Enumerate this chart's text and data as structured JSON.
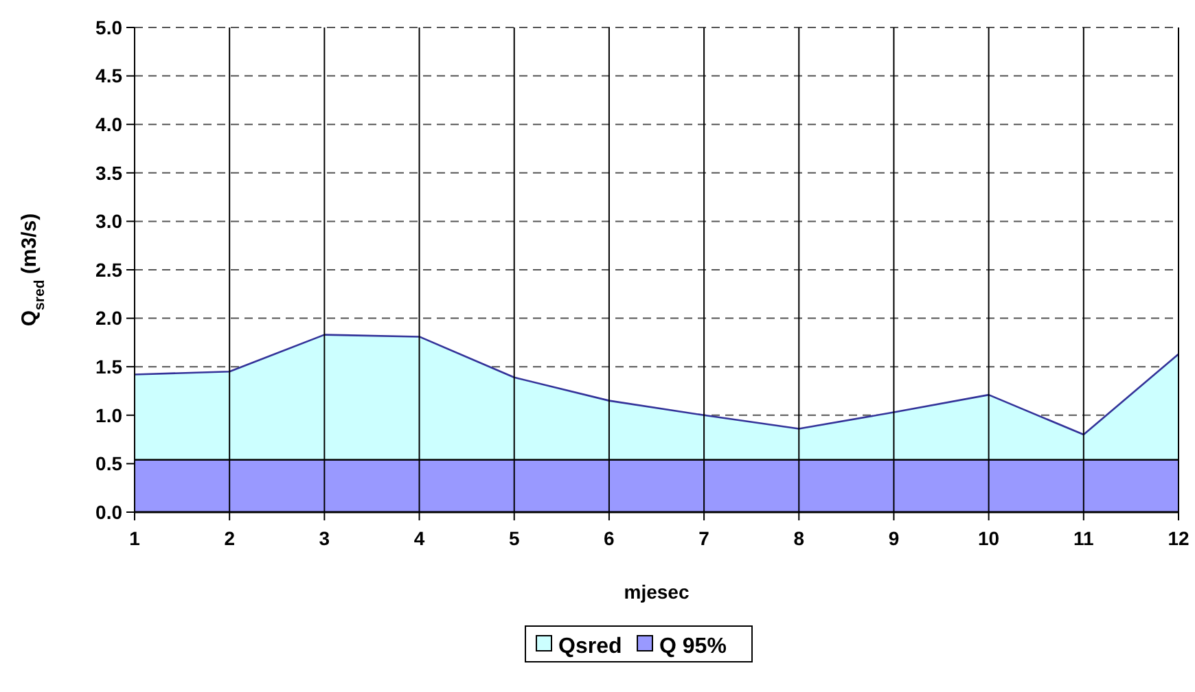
{
  "chart_data": {
    "type": "area",
    "xlabel": "mjesec",
    "ylabel": "Q$_{sred}$ (m3/s)",
    "x": [
      1,
      2,
      3,
      4,
      5,
      6,
      7,
      8,
      9,
      10,
      11,
      12
    ],
    "series": [
      {
        "name": "Qsred",
        "color": "#ccffff",
        "values": [
          1.42,
          1.45,
          1.83,
          1.81,
          1.39,
          1.15,
          1.0,
          0.86,
          1.03,
          1.21,
          0.8,
          1.63
        ]
      },
      {
        "name": "Q 95%",
        "color": "#9999ff",
        "values": [
          0.54,
          0.54,
          0.54,
          0.54,
          0.54,
          0.54,
          0.54,
          0.54,
          0.54,
          0.54,
          0.54,
          0.54
        ]
      }
    ],
    "xlim": [
      1,
      12
    ],
    "xticks": [
      1,
      2,
      3,
      4,
      5,
      6,
      7,
      8,
      9,
      10,
      11,
      12
    ],
    "ylim": [
      0,
      5
    ],
    "yticks": [
      {
        "value": 0,
        "label": "0.0"
      },
      {
        "value": 0.5,
        "label": "0.5"
      },
      {
        "value": 1,
        "label": "1.0"
      },
      {
        "value": 1.5,
        "label": "1.5"
      },
      {
        "value": 2,
        "label": "2.0"
      },
      {
        "value": 2.5,
        "label": "2.5"
      },
      {
        "value": 3,
        "label": "3.0"
      },
      {
        "value": 3.5,
        "label": "3.5"
      },
      {
        "value": 4,
        "label": "4.0"
      },
      {
        "value": 4.5,
        "label": "4.5"
      },
      {
        "value": 5,
        "label": "5.0"
      }
    ],
    "grid": true,
    "legend": "bottom"
  }
}
